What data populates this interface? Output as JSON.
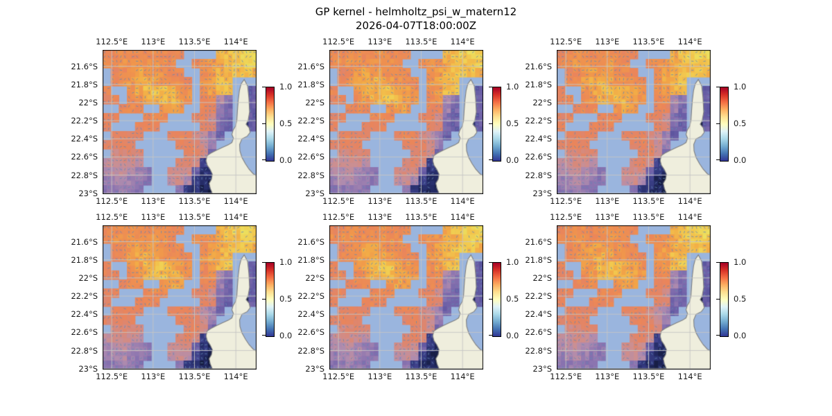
{
  "figure": {
    "title": "GP kernel - helmholtz_psi_w_matern12",
    "subtitle": "2026-04-07T18:00:00Z"
  },
  "chart_data": {
    "type": "heatmap",
    "title": "GP kernel - helmholtz_psi_w_matern12",
    "subtitle": "2026-04-07T18:00:00Z",
    "layout": {
      "rows": 2,
      "cols": 3,
      "panel_count": 6,
      "note": "six panels showing the same normalized psi field with quiver overlay",
      "grid_on": true
    },
    "x_axis": {
      "ticks": [
        "112.5°E",
        "113°E",
        "113.5°E",
        "114°E"
      ],
      "tick_values": [
        112.5,
        113.0,
        113.5,
        114.0
      ],
      "range": [
        112.39,
        114.25
      ],
      "labels_top_and_bottom": true
    },
    "y_axis": {
      "ticks": [
        "21.6°S",
        "21.8°S",
        "22°S",
        "22.2°S",
        "22.4°S",
        "22.6°S",
        "22.8°S",
        "23°S"
      ],
      "tick_values": [
        21.6,
        21.8,
        22.0,
        22.2,
        22.4,
        22.6,
        22.8,
        23.0
      ],
      "range": [
        21.42,
        23.01
      ]
    },
    "colorbar": {
      "ticks": [
        "1.0",
        "0.5",
        "0.0"
      ],
      "min": 0.0,
      "max": 1.0,
      "colormap": "RdYlBu_r",
      "stops": [
        "#a50026",
        "#d73027",
        "#f46d43",
        "#fdae61",
        "#fee090",
        "#ffffbf",
        "#e0f3f8",
        "#abd9e9",
        "#74add1",
        "#4575b4",
        "#313695"
      ]
    },
    "quiver_overlay": true,
    "colors": {
      "ocean": "#9ab5de",
      "land": "#efeedd",
      "coast": "#7f7f7f",
      "gridline": "rgba(198,198,196,0.92)",
      "frame": "#000000",
      "arrow": "rgba(100,135,180,0.95)",
      "cell_colormap_stops": [
        [
          0.0,
          "#141a3c"
        ],
        [
          0.06,
          "#232a63"
        ],
        [
          0.12,
          "#343a80"
        ],
        [
          0.2,
          "#4c4b96"
        ],
        [
          0.3,
          "#6a5ea6"
        ],
        [
          0.4,
          "#8b74b0"
        ],
        [
          0.5,
          "#b08cae"
        ],
        [
          0.58,
          "#cc8f91"
        ],
        [
          0.66,
          "#dd8670"
        ],
        [
          0.74,
          "#ea855b"
        ],
        [
          0.82,
          "#f0944d"
        ],
        [
          0.88,
          "#f2ab47"
        ],
        [
          0.94,
          "#f2c84e"
        ],
        [
          1.0,
          "#ecdf5e"
        ]
      ]
    },
    "grid": {
      "n_lon": 19,
      "n_lat": 16,
      "lon_range": [
        112.39,
        114.25
      ],
      "lat_range": [
        21.42,
        23.01
      ],
      "values": [
        [
          0.76,
          0.78,
          0.8,
          0.79,
          0.77,
          0.78,
          0.8,
          0.78,
          0.76,
          0.75,
          null,
          null,
          null,
          null,
          0.88,
          0.92,
          0.95,
          0.97,
          0.98
        ],
        [
          0.78,
          0.8,
          0.82,
          0.8,
          0.79,
          0.8,
          0.82,
          0.8,
          0.78,
          null,
          null,
          0.78,
          0.8,
          0.82,
          0.86,
          0.9,
          0.93,
          0.95,
          0.96
        ],
        [
          null,
          0.72,
          0.78,
          0.82,
          0.85,
          0.84,
          0.82,
          0.8,
          0.78,
          0.76,
          null,
          null,
          0.8,
          0.84,
          0.88,
          0.9,
          0.92,
          0.93,
          0.9
        ],
        [
          null,
          0.75,
          0.8,
          0.83,
          0.86,
          0.88,
          0.85,
          0.82,
          0.8,
          0.78,
          0.76,
          null,
          0.82,
          0.86,
          0.9,
          0.92,
          null,
          null,
          null
        ],
        [
          0.74,
          null,
          null,
          0.82,
          0.86,
          0.9,
          0.93,
          0.92,
          0.88,
          0.84,
          0.8,
          null,
          0.78,
          0.84,
          0.9,
          0.93,
          null,
          null,
          0.28
        ],
        [
          0.72,
          0.74,
          null,
          0.78,
          0.82,
          0.88,
          0.9,
          0.91,
          0.89,
          0.86,
          0.82,
          null,
          0.76,
          0.8,
          0.5,
          0.4,
          null,
          null,
          0.3
        ],
        [
          null,
          null,
          0.74,
          0.76,
          0.78,
          null,
          null,
          0.82,
          0.85,
          0.84,
          null,
          null,
          0.74,
          0.72,
          0.45,
          0.35,
          null,
          null,
          0.3
        ],
        [
          0.7,
          0.72,
          null,
          null,
          null,
          0.76,
          0.78,
          0.77,
          null,
          null,
          null,
          0.7,
          0.72,
          0.6,
          0.38,
          0.32,
          null,
          null,
          0.28
        ],
        [
          0.7,
          null,
          null,
          null,
          0.72,
          0.74,
          0.73,
          null,
          null,
          null,
          null,
          null,
          0.7,
          0.65,
          0.35,
          0.3,
          null,
          0.03,
          0.3
        ],
        [
          null,
          0.7,
          0.72,
          0.71,
          0.7,
          null,
          null,
          null,
          0.72,
          0.74,
          0.72,
          0.62,
          0.55,
          0.45,
          0.3,
          null,
          null,
          null,
          null
        ],
        [
          0.68,
          0.7,
          0.71,
          0.7,
          null,
          null,
          null,
          null,
          null,
          0.7,
          0.72,
          0.68,
          0.58,
          0.45,
          null,
          null,
          null,
          null,
          null
        ],
        [
          null,
          0.62,
          0.65,
          0.66,
          0.64,
          null,
          null,
          null,
          null,
          null,
          0.68,
          0.7,
          0.6,
          0.35,
          null,
          null,
          null,
          null,
          null
        ],
        [
          0.55,
          0.57,
          0.6,
          0.58,
          0.54,
          null,
          null,
          null,
          null,
          0.66,
          0.68,
          0.62,
          0.15,
          0.1,
          null,
          null,
          null,
          null,
          null
        ],
        [
          0.5,
          0.52,
          0.55,
          0.5,
          0.45,
          0.42,
          null,
          null,
          0.6,
          0.62,
          0.6,
          0.3,
          0.1,
          0.06,
          null,
          null,
          null,
          null,
          null
        ],
        [
          0.45,
          0.48,
          0.5,
          0.46,
          0.42,
          0.4,
          null,
          null,
          0.55,
          0.58,
          0.5,
          0.15,
          0.06,
          0.03,
          null,
          null,
          null,
          null,
          null
        ],
        [
          0.4,
          0.42,
          0.45,
          0.42,
          0.4,
          null,
          null,
          null,
          null,
          0.4,
          0.12,
          0.08,
          0.05,
          0.02,
          null,
          null,
          null,
          null,
          null
        ]
      ]
    },
    "coastline_polygon": [
      [
        0.92,
        0.205
      ],
      [
        0.942,
        0.25
      ],
      [
        0.95,
        0.33
      ],
      [
        0.955,
        0.43
      ],
      [
        0.945,
        0.49
      ],
      [
        0.932,
        0.515
      ],
      [
        0.952,
        0.54
      ],
      [
        0.958,
        0.572
      ],
      [
        0.94,
        0.598
      ],
      [
        0.905,
        0.617
      ],
      [
        0.89,
        0.655
      ],
      [
        0.892,
        0.7
      ],
      [
        0.905,
        0.745
      ],
      [
        0.928,
        0.79
      ],
      [
        0.952,
        0.828
      ],
      [
        0.978,
        0.858
      ],
      [
        1.0,
        0.873
      ],
      [
        1.0,
        1.0
      ],
      [
        0.715,
        1.0
      ],
      [
        0.7,
        0.962
      ],
      [
        0.692,
        0.925
      ],
      [
        0.707,
        0.898
      ],
      [
        0.713,
        0.862
      ],
      [
        0.698,
        0.828
      ],
      [
        0.68,
        0.8
      ],
      [
        0.672,
        0.768
      ],
      [
        0.679,
        0.733
      ],
      [
        0.702,
        0.716
      ],
      [
        0.737,
        0.697
      ],
      [
        0.777,
        0.677
      ],
      [
        0.817,
        0.658
      ],
      [
        0.84,
        0.642
      ],
      [
        0.85,
        0.612
      ],
      [
        0.84,
        0.586
      ],
      [
        0.848,
        0.556
      ],
      [
        0.864,
        0.528
      ],
      [
        0.872,
        0.488
      ],
      [
        0.876,
        0.42
      ],
      [
        0.881,
        0.35
      ],
      [
        0.889,
        0.28
      ],
      [
        0.9,
        0.235
      ]
    ]
  }
}
